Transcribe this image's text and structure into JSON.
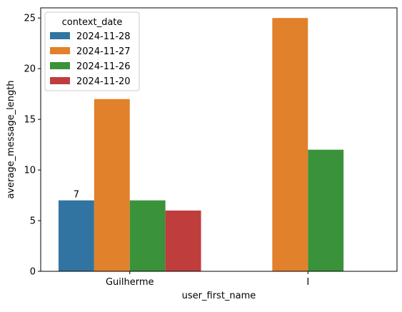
{
  "chart_data": {
    "type": "bar",
    "title": "",
    "xlabel": "user_first_name",
    "ylabel": "average_message_length",
    "categories": [
      "Guilherme",
      "I"
    ],
    "ylim": [
      0,
      26
    ],
    "yticks": [
      0,
      5,
      10,
      15,
      20,
      25
    ],
    "grid": false,
    "legend": {
      "title": "context_date",
      "placement": "top-left"
    },
    "series": [
      {
        "name": "2024-11-28",
        "color": "#3274a1",
        "values": [
          7,
          null
        ]
      },
      {
        "name": "2024-11-27",
        "color": "#e1812c",
        "values": [
          17,
          25
        ]
      },
      {
        "name": "2024-11-26",
        "color": "#3a923a",
        "values": [
          7,
          12
        ]
      },
      {
        "name": "2024-11-20",
        "color": "#c03d3e",
        "values": [
          6,
          null
        ]
      }
    ],
    "annotations": [
      {
        "series": "2024-11-28",
        "category": "Guilherme",
        "text": "7"
      }
    ]
  }
}
